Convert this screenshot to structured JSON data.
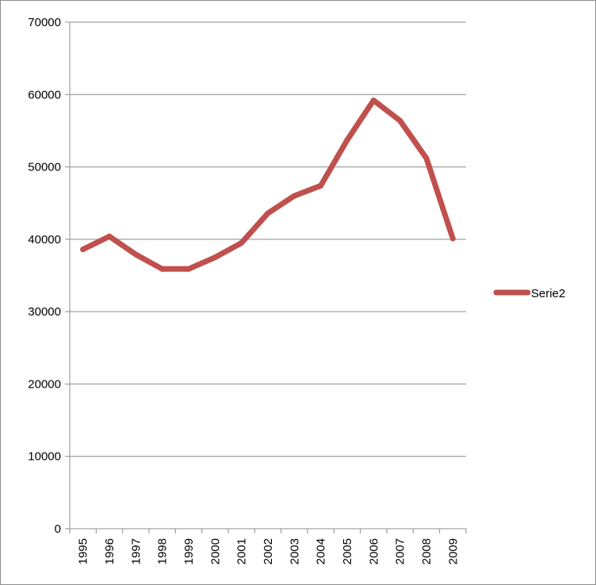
{
  "chart_data": {
    "type": "line",
    "title": "",
    "xlabel": "",
    "ylabel": "",
    "categories": [
      "1995",
      "1996",
      "1997",
      "1998",
      "1999",
      "2000",
      "2001",
      "2002",
      "2003",
      "2004",
      "2005",
      "2006",
      "2007",
      "2008",
      "2009"
    ],
    "series": [
      {
        "name": "Serie2",
        "color": "#c0504d",
        "values": [
          38600,
          40400,
          37900,
          35900,
          35900,
          37500,
          39500,
          43600,
          46000,
          47400,
          53700,
          59200,
          56400,
          51200,
          40100
        ]
      }
    ],
    "ylim": [
      0,
      70000
    ],
    "yticks": [
      0,
      10000,
      20000,
      30000,
      40000,
      50000,
      60000,
      70000
    ],
    "grid": "horizontal",
    "legend_position": "right",
    "x_tick_rotation": "vertical"
  }
}
